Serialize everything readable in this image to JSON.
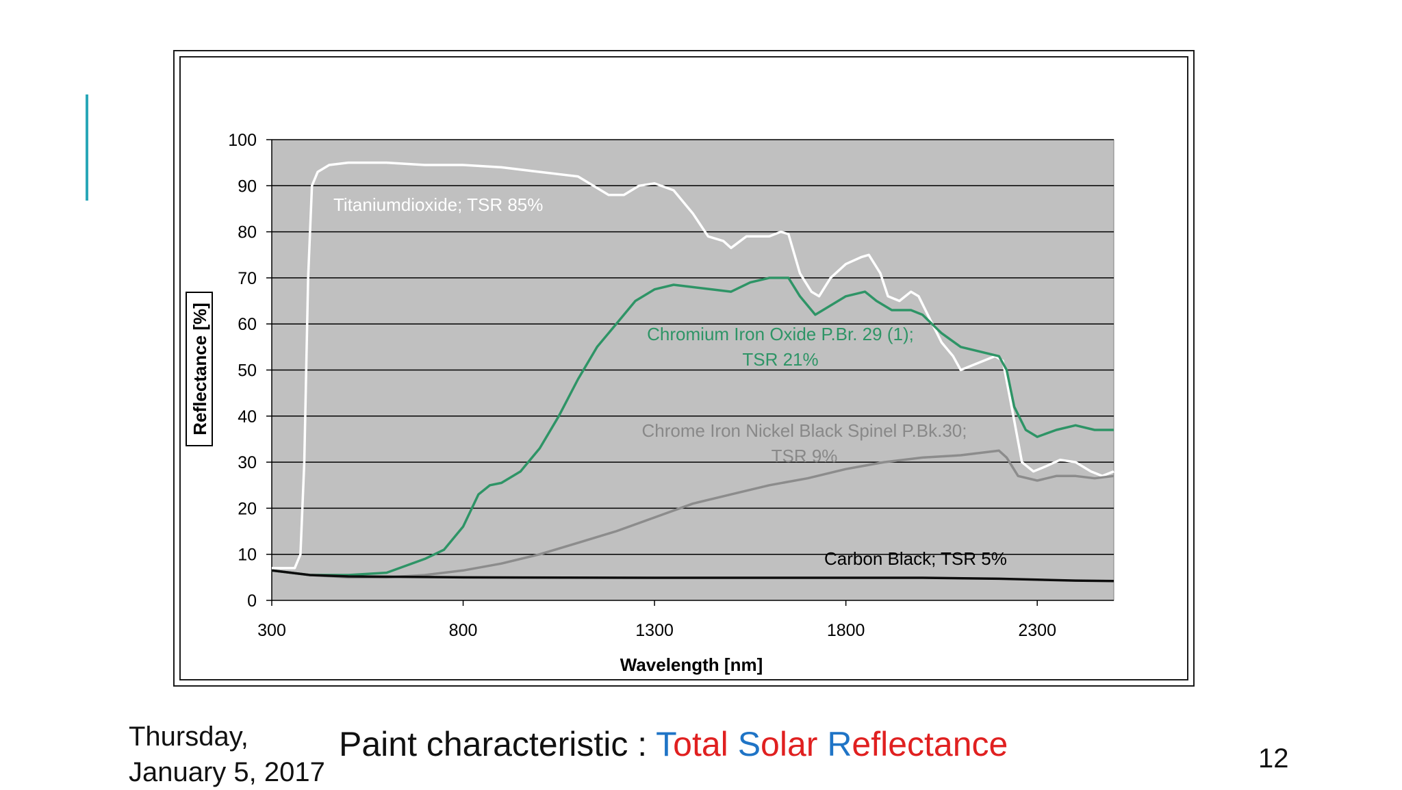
{
  "footer": {
    "date_line1": "Thursday,",
    "date_line2": "January 5, 2017",
    "title_prefix": "Paint characteristic : ",
    "title_parts": [
      {
        "text": "T",
        "color": "#1f74c6"
      },
      {
        "text": "otal ",
        "color": "#e02020"
      },
      {
        "text": "S",
        "color": "#1f74c6"
      },
      {
        "text": "olar ",
        "color": "#e02020"
      },
      {
        "text": "R",
        "color": "#1f74c6"
      },
      {
        "text": "eflectance",
        "color": "#e02020"
      }
    ],
    "page_number": "12"
  },
  "chart_data": {
    "type": "line",
    "xlabel": "Wavelength [nm]",
    "ylabel": "Reflectance [%]",
    "xlim": [
      300,
      2500
    ],
    "ylim": [
      0,
      100
    ],
    "x_ticks": [
      300,
      800,
      1300,
      1800,
      2300
    ],
    "y_ticks": [
      0,
      10,
      20,
      30,
      40,
      50,
      60,
      70,
      80,
      90,
      100
    ],
    "grid": "horizontal",
    "plot_background": "#c0c0c0",
    "series": [
      {
        "label_lines": [
          "Titaniumdioxide; TSR 85%"
        ],
        "color": "#ffffff",
        "label_color": "#ffffff",
        "points": [
          [
            300,
            7
          ],
          [
            360,
            7
          ],
          [
            375,
            10
          ],
          [
            385,
            30
          ],
          [
            395,
            70
          ],
          [
            405,
            90
          ],
          [
            420,
            93
          ],
          [
            450,
            94.5
          ],
          [
            500,
            95
          ],
          [
            600,
            95
          ],
          [
            700,
            94.5
          ],
          [
            800,
            94.5
          ],
          [
            900,
            94
          ],
          [
            1000,
            93
          ],
          [
            1100,
            92
          ],
          [
            1180,
            88
          ],
          [
            1220,
            88
          ],
          [
            1260,
            90
          ],
          [
            1300,
            90.5
          ],
          [
            1350,
            89
          ],
          [
            1400,
            84
          ],
          [
            1440,
            79
          ],
          [
            1480,
            78
          ],
          [
            1500,
            76.5
          ],
          [
            1540,
            79
          ],
          [
            1600,
            79
          ],
          [
            1630,
            80
          ],
          [
            1650,
            79.5
          ],
          [
            1680,
            71
          ],
          [
            1710,
            67
          ],
          [
            1730,
            66
          ],
          [
            1760,
            70
          ],
          [
            1800,
            73
          ],
          [
            1840,
            74.5
          ],
          [
            1860,
            75
          ],
          [
            1890,
            71
          ],
          [
            1910,
            66
          ],
          [
            1940,
            65
          ],
          [
            1970,
            67
          ],
          [
            1990,
            66
          ],
          [
            2020,
            61
          ],
          [
            2050,
            56
          ],
          [
            2080,
            53
          ],
          [
            2100,
            50
          ],
          [
            2130,
            51
          ],
          [
            2160,
            52
          ],
          [
            2190,
            53
          ],
          [
            2210,
            52
          ],
          [
            2240,
            39
          ],
          [
            2260,
            30
          ],
          [
            2290,
            28
          ],
          [
            2320,
            29
          ],
          [
            2360,
            30.5
          ],
          [
            2400,
            30
          ],
          [
            2440,
            28
          ],
          [
            2470,
            27
          ],
          [
            2500,
            28
          ]
        ]
      },
      {
        "label_lines": [
          "Chromium Iron Oxide P.Br. 29 (1);",
          "TSR 21%"
        ],
        "color": "#2e9466",
        "label_color": "#2e9466",
        "points": [
          [
            300,
            6.5
          ],
          [
            400,
            5.5
          ],
          [
            500,
            5.5
          ],
          [
            600,
            6
          ],
          [
            700,
            9
          ],
          [
            750,
            11
          ],
          [
            800,
            16
          ],
          [
            840,
            23
          ],
          [
            870,
            25
          ],
          [
            900,
            25.5
          ],
          [
            950,
            28
          ],
          [
            1000,
            33
          ],
          [
            1050,
            40
          ],
          [
            1100,
            48
          ],
          [
            1150,
            55
          ],
          [
            1200,
            60
          ],
          [
            1250,
            65
          ],
          [
            1300,
            67.5
          ],
          [
            1350,
            68.5
          ],
          [
            1400,
            68
          ],
          [
            1450,
            67.5
          ],
          [
            1500,
            67
          ],
          [
            1550,
            69
          ],
          [
            1600,
            70
          ],
          [
            1650,
            70
          ],
          [
            1680,
            66
          ],
          [
            1720,
            62
          ],
          [
            1760,
            64
          ],
          [
            1800,
            66
          ],
          [
            1850,
            67
          ],
          [
            1880,
            65
          ],
          [
            1920,
            63
          ],
          [
            1970,
            63
          ],
          [
            2000,
            62
          ],
          [
            2050,
            58
          ],
          [
            2100,
            55
          ],
          [
            2150,
            54
          ],
          [
            2200,
            53
          ],
          [
            2220,
            50
          ],
          [
            2240,
            42
          ],
          [
            2270,
            37
          ],
          [
            2300,
            35.5
          ],
          [
            2350,
            37
          ],
          [
            2400,
            38
          ],
          [
            2450,
            37
          ],
          [
            2500,
            37
          ]
        ]
      },
      {
        "label_lines": [
          "Chrome Iron Nickel Black Spinel P.Bk.30;",
          "TSR 9%"
        ],
        "color": "#8c8c8c",
        "label_color": "#888888",
        "points": [
          [
            300,
            6.5
          ],
          [
            400,
            5.5
          ],
          [
            500,
            5
          ],
          [
            600,
            5
          ],
          [
            700,
            5.5
          ],
          [
            800,
            6.5
          ],
          [
            900,
            8
          ],
          [
            1000,
            10
          ],
          [
            1100,
            12.5
          ],
          [
            1200,
            15
          ],
          [
            1300,
            18
          ],
          [
            1400,
            21
          ],
          [
            1500,
            23
          ],
          [
            1600,
            25
          ],
          [
            1700,
            26.5
          ],
          [
            1800,
            28.5
          ],
          [
            1900,
            30
          ],
          [
            2000,
            31
          ],
          [
            2100,
            31.5
          ],
          [
            2150,
            32
          ],
          [
            2200,
            32.5
          ],
          [
            2220,
            31
          ],
          [
            2250,
            27
          ],
          [
            2300,
            26
          ],
          [
            2350,
            27
          ],
          [
            2400,
            27
          ],
          [
            2450,
            26.5
          ],
          [
            2500,
            27
          ]
        ]
      },
      {
        "label_lines": [
          "Carbon Black; TSR 5%"
        ],
        "color": "#0d0d0d",
        "label_color": "#000000",
        "points": [
          [
            300,
            6.5
          ],
          [
            350,
            6
          ],
          [
            400,
            5.5
          ],
          [
            500,
            5.2
          ],
          [
            800,
            5
          ],
          [
            1300,
            4.9
          ],
          [
            1800,
            4.9
          ],
          [
            2000,
            4.9
          ],
          [
            2200,
            4.7
          ],
          [
            2400,
            4.3
          ],
          [
            2500,
            4.2
          ]
        ]
      }
    ]
  }
}
